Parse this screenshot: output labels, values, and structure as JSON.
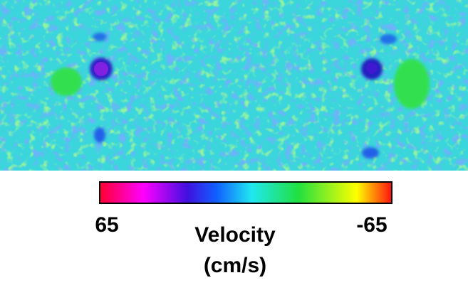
{
  "figure": {
    "colorbar": {
      "ticks": [
        65,
        -65
      ],
      "label": [
        "Velocity",
        "(cm/s)"
      ]
    }
  }
}
